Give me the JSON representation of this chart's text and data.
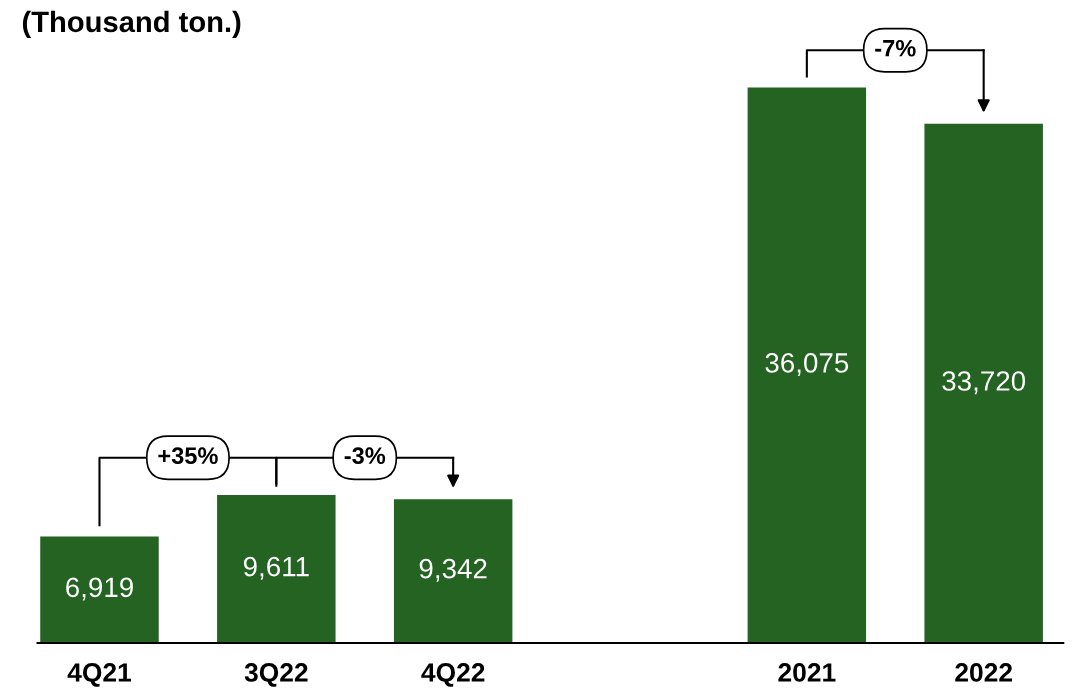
{
  "chart_data": {
    "type": "bar",
    "title": "(Thousand ton.)",
    "categories": [
      "4Q21",
      "3Q22",
      "4Q22",
      null,
      "2021",
      "2022"
    ],
    "values": [
      6919,
      9611,
      9342,
      null,
      36075,
      33720
    ],
    "value_labels": [
      "6,919",
      "9,611",
      "9,342",
      null,
      "36,075",
      "33,720"
    ],
    "color": "#246322",
    "annotations": [
      "+35%",
      "-3%",
      "-7%"
    ],
    "grid": false
  }
}
